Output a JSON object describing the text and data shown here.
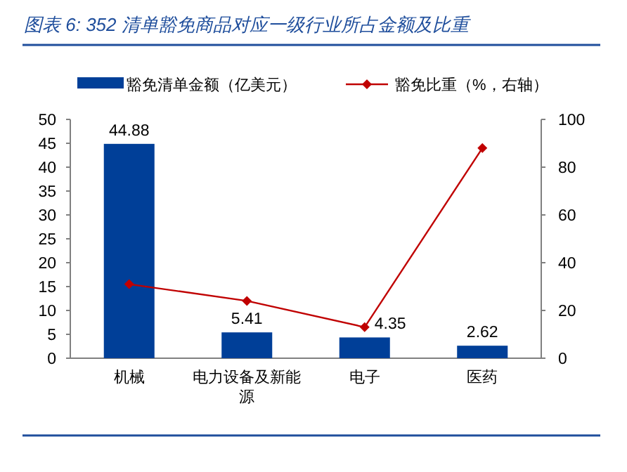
{
  "chart_data": {
    "type": "bar",
    "title": "图表 6:  352 清单豁免商品对应一级行业所占金额及比重",
    "categories": [
      "机械",
      "电力设备及新能源",
      "电子",
      "医药"
    ],
    "series": [
      {
        "name": "豁免清单金额（亿美元）",
        "color": "#003f98",
        "values": [
          44.88,
          5.41,
          4.35,
          2.62
        ],
        "value_labels": [
          "44.88",
          "5.41",
          "4.35",
          "2.62"
        ]
      },
      {
        "name": "豁免比重（%，右轴）",
        "type": "line",
        "axis": "y2",
        "color": "#c00000",
        "marker": "diamond",
        "values": [
          31,
          24,
          13,
          88
        ]
      }
    ],
    "ylim": [
      0,
      50
    ],
    "yticks": [
      0,
      5,
      10,
      15,
      20,
      25,
      30,
      35,
      40,
      45,
      50
    ],
    "y2lim": [
      0,
      100
    ],
    "y2ticks": [
      0,
      20,
      40,
      60,
      80,
      100
    ],
    "legend": "top"
  }
}
